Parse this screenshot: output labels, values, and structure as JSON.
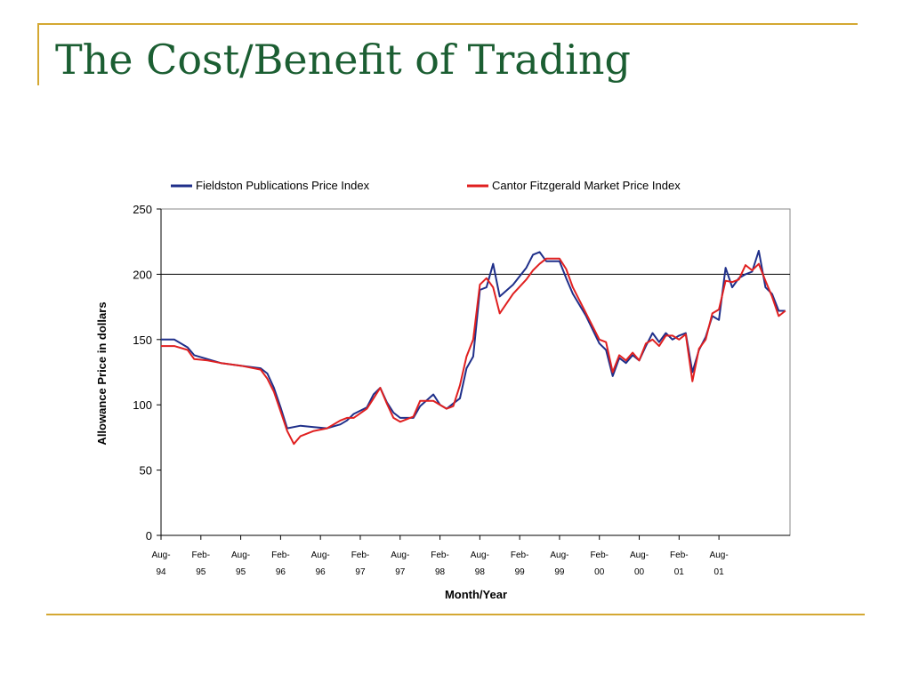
{
  "slide": {
    "title": "The Cost/Benefit of Trading",
    "accent_color": "#d4a832",
    "title_color": "#1b5e32"
  },
  "chart_data": {
    "type": "line",
    "xlabel": "Month/Year",
    "ylabel": "Allowance Price in dollars",
    "ylim": [
      0,
      250
    ],
    "yticks": [
      0,
      50,
      100,
      150,
      200,
      250
    ],
    "reference_line": 200,
    "xlim": [
      "1994-08",
      "2002-02"
    ],
    "xticks": [
      {
        "x": "1994-08",
        "line1": "Aug-",
        "line2": "94"
      },
      {
        "x": "1995-02",
        "line1": "Feb-",
        "line2": "95"
      },
      {
        "x": "1995-08",
        "line1": "Aug-",
        "line2": "95"
      },
      {
        "x": "1996-02",
        "line1": "Feb-",
        "line2": "96"
      },
      {
        "x": "1996-08",
        "line1": "Aug-",
        "line2": "96"
      },
      {
        "x": "1997-02",
        "line1": "Feb-",
        "line2": "97"
      },
      {
        "x": "1997-08",
        "line1": "Aug-",
        "line2": "97"
      },
      {
        "x": "1998-02",
        "line1": "Feb-",
        "line2": "98"
      },
      {
        "x": "1998-08",
        "line1": "Aug-",
        "line2": "98"
      },
      {
        "x": "1999-02",
        "line1": "Feb-",
        "line2": "99"
      },
      {
        "x": "1999-08",
        "line1": "Aug-",
        "line2": "99"
      },
      {
        "x": "2000-02",
        "line1": "Feb-",
        "line2": "00"
      },
      {
        "x": "2000-08",
        "line1": "Aug-",
        "line2": "00"
      },
      {
        "x": "2001-02",
        "line1": "Feb-",
        "line2": "01"
      },
      {
        "x": "2001-08",
        "line1": "Aug-",
        "line2": "01"
      }
    ],
    "grid": false,
    "legend_position": "top",
    "series": [
      {
        "name": "Fieldston Publications Price Index",
        "color": "#1f2f8a",
        "points": [
          [
            "1994-08",
            150
          ],
          [
            "1994-10",
            150
          ],
          [
            "1994-12",
            144
          ],
          [
            "1995-01",
            138
          ],
          [
            "1995-03",
            135
          ],
          [
            "1995-05",
            132
          ],
          [
            "1995-08",
            130
          ],
          [
            "1995-11",
            128
          ],
          [
            "1995-12",
            124
          ],
          [
            "1996-01",
            113
          ],
          [
            "1996-02",
            98
          ],
          [
            "1996-03",
            82
          ],
          [
            "1996-05",
            84
          ],
          [
            "1996-07",
            83
          ],
          [
            "1996-09",
            82
          ],
          [
            "1996-11",
            85
          ],
          [
            "1996-12",
            88
          ],
          [
            "1997-01",
            93
          ],
          [
            "1997-03",
            98
          ],
          [
            "1997-04",
            108
          ],
          [
            "1997-05",
            113
          ],
          [
            "1997-06",
            102
          ],
          [
            "1997-07",
            94
          ],
          [
            "1997-08",
            90
          ],
          [
            "1997-10",
            90
          ],
          [
            "1997-11",
            99
          ],
          [
            "1998-01",
            108
          ],
          [
            "1998-02",
            100
          ],
          [
            "1998-03",
            97
          ],
          [
            "1998-04",
            101
          ],
          [
            "1998-05",
            105
          ],
          [
            "1998-06",
            128
          ],
          [
            "1998-07",
            137
          ],
          [
            "1998-08",
            188
          ],
          [
            "1998-09",
            190
          ],
          [
            "1998-10",
            208
          ],
          [
            "1998-11",
            183
          ],
          [
            "1999-01",
            192
          ],
          [
            "1999-03",
            205
          ],
          [
            "1999-04",
            215
          ],
          [
            "1999-05",
            217
          ],
          [
            "1999-06",
            210
          ],
          [
            "1999-08",
            210
          ],
          [
            "1999-09",
            197
          ],
          [
            "1999-10",
            185
          ],
          [
            "1999-12",
            168
          ],
          [
            "2000-02",
            147
          ],
          [
            "2000-03",
            142
          ],
          [
            "2000-04",
            122
          ],
          [
            "2000-05",
            136
          ],
          [
            "2000-06",
            132
          ],
          [
            "2000-07",
            138
          ],
          [
            "2000-08",
            134
          ],
          [
            "2000-09",
            145
          ],
          [
            "2000-10",
            155
          ],
          [
            "2000-11",
            148
          ],
          [
            "2000-12",
            155
          ],
          [
            "2001-01",
            150
          ],
          [
            "2001-02",
            153
          ],
          [
            "2001-03",
            155
          ],
          [
            "2001-04",
            125
          ],
          [
            "2001-05",
            142
          ],
          [
            "2001-06",
            152
          ],
          [
            "2001-07",
            168
          ],
          [
            "2001-08",
            165
          ],
          [
            "2001-09",
            205
          ],
          [
            "2001-10",
            190
          ],
          [
            "2001-11",
            197
          ],
          [
            "2001-12",
            200
          ],
          [
            "2002-01",
            202
          ],
          [
            "2002-02",
            218
          ],
          [
            "2002-03",
            190
          ],
          [
            "2002-04",
            185
          ],
          [
            "2002-05",
            172
          ],
          [
            "2002-06",
            172
          ]
        ]
      },
      {
        "name": "Cantor Fitzgerald Market Price Index",
        "color": "#e02020",
        "points": [
          [
            "1994-08",
            145
          ],
          [
            "1994-10",
            145
          ],
          [
            "1994-12",
            142
          ],
          [
            "1995-01",
            135
          ],
          [
            "1995-03",
            134
          ],
          [
            "1995-05",
            132
          ],
          [
            "1995-08",
            130
          ],
          [
            "1995-11",
            127
          ],
          [
            "1995-12",
            120
          ],
          [
            "1996-01",
            110
          ],
          [
            "1996-02",
            95
          ],
          [
            "1996-03",
            80
          ],
          [
            "1996-04",
            70
          ],
          [
            "1996-05",
            76
          ],
          [
            "1996-07",
            80
          ],
          [
            "1996-09",
            82
          ],
          [
            "1996-11",
            88
          ],
          [
            "1996-12",
            90
          ],
          [
            "1997-01",
            90
          ],
          [
            "1997-03",
            97
          ],
          [
            "1997-04",
            105
          ],
          [
            "1997-05",
            113
          ],
          [
            "1997-06",
            101
          ],
          [
            "1997-07",
            90
          ],
          [
            "1997-08",
            87
          ],
          [
            "1997-10",
            91
          ],
          [
            "1997-11",
            103
          ],
          [
            "1998-01",
            103
          ],
          [
            "1998-02",
            100
          ],
          [
            "1998-03",
            97
          ],
          [
            "1998-04",
            99
          ],
          [
            "1998-05",
            115
          ],
          [
            "1998-06",
            137
          ],
          [
            "1998-07",
            150
          ],
          [
            "1998-08",
            192
          ],
          [
            "1998-09",
            197
          ],
          [
            "1998-10",
            190
          ],
          [
            "1998-11",
            170
          ],
          [
            "1999-01",
            185
          ],
          [
            "1999-03",
            196
          ],
          [
            "1999-04",
            203
          ],
          [
            "1999-05",
            208
          ],
          [
            "1999-06",
            212
          ],
          [
            "1999-08",
            212
          ],
          [
            "1999-09",
            204
          ],
          [
            "1999-10",
            190
          ],
          [
            "1999-12",
            170
          ],
          [
            "2000-02",
            150
          ],
          [
            "2000-03",
            148
          ],
          [
            "2000-04",
            125
          ],
          [
            "2000-05",
            138
          ],
          [
            "2000-06",
            134
          ],
          [
            "2000-07",
            140
          ],
          [
            "2000-08",
            134
          ],
          [
            "2000-09",
            147
          ],
          [
            "2000-10",
            150
          ],
          [
            "2000-11",
            145
          ],
          [
            "2000-12",
            153
          ],
          [
            "2001-01",
            153
          ],
          [
            "2001-02",
            150
          ],
          [
            "2001-03",
            154
          ],
          [
            "2001-04",
            118
          ],
          [
            "2001-05",
            143
          ],
          [
            "2001-06",
            150
          ],
          [
            "2001-07",
            170
          ],
          [
            "2001-08",
            173
          ],
          [
            "2001-09",
            195
          ],
          [
            "2001-10",
            194
          ],
          [
            "2001-11",
            196
          ],
          [
            "2001-12",
            207
          ],
          [
            "2002-01",
            203
          ],
          [
            "2002-02",
            208
          ],
          [
            "2002-03",
            195
          ],
          [
            "2002-04",
            183
          ],
          [
            "2002-05",
            168
          ],
          [
            "2002-06",
            172
          ]
        ]
      }
    ]
  }
}
